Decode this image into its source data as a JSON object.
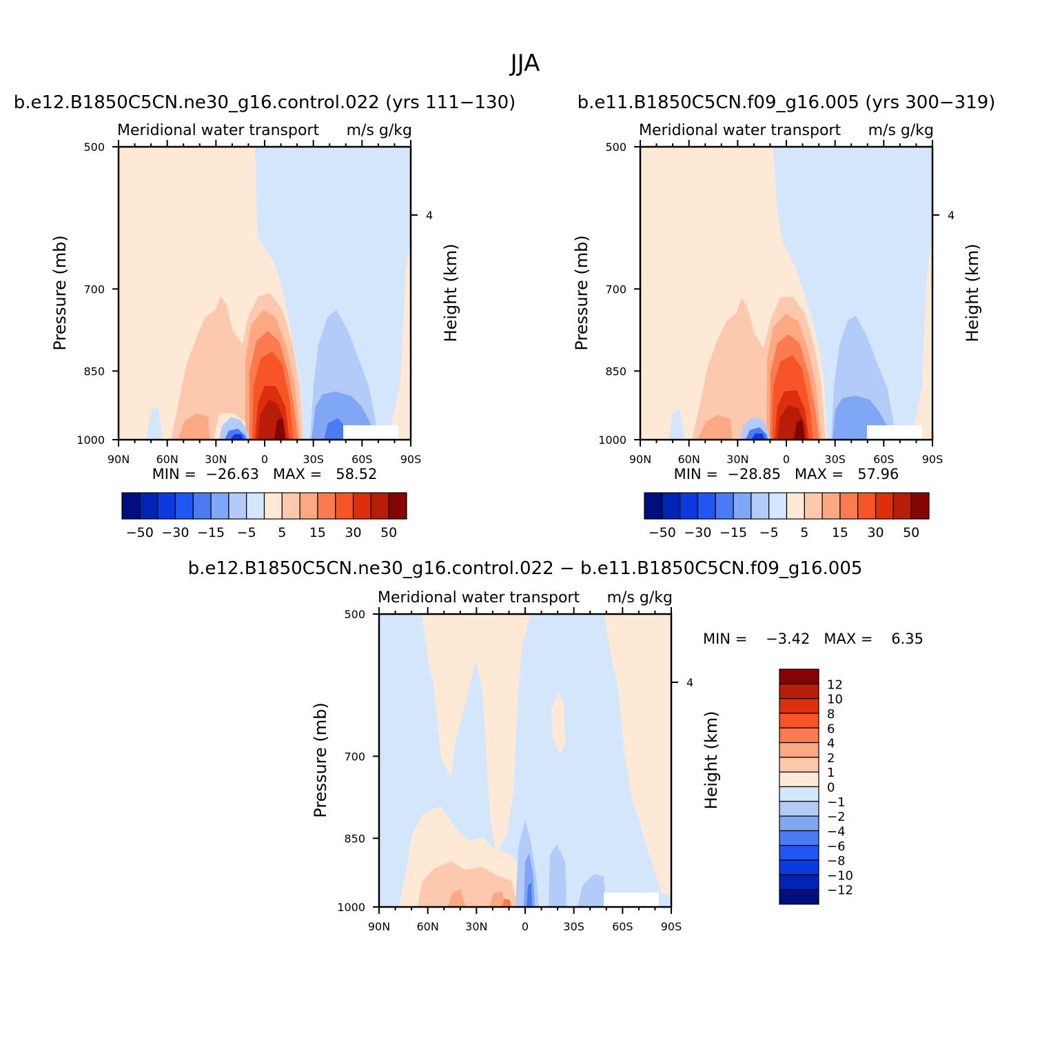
{
  "page_title": "JJA",
  "colors": {
    "neg": [
      "#000e7e",
      "#0224b4",
      "#0b3be0",
      "#2156f4",
      "#4a7bf2",
      "#80a6f6",
      "#b3cbf9",
      "#d4e6fc"
    ],
    "pos": [
      "#fee9d7",
      "#fcc9ae",
      "#fca882",
      "#fa7b4e",
      "#f75427",
      "#dc2f0e",
      "#b71d07",
      "#850404"
    ]
  },
  "chart_data": [
    {
      "type": "heatmap",
      "panel": "left",
      "title": "b.e12.B1850C5CN.ne30_g16.control.022 (yrs 111-130)",
      "subtitle_left": "Meridional water transport",
      "subtitle_right": "m/s g/kg",
      "ylabel": "Pressure (mb)",
      "ylabel_right": "Height (km)",
      "x_ticks": [
        "90N",
        "60N",
        "30N",
        "0",
        "30S",
        "60S",
        "90S"
      ],
      "y_ticks": [
        "500",
        "700",
        "850",
        "1000"
      ],
      "right_ticks": [
        "4"
      ],
      "ylim": [
        1000,
        500
      ],
      "stats": "MIN =  -26.63   MAX =   58.52",
      "min": -26.63,
      "max": 58.52,
      "colorbar_orientation": "horizontal",
      "colorbar_labels": [
        "-50",
        "-30",
        "-15",
        "-5",
        "5",
        "15",
        "30",
        "50"
      ],
      "field": [
        {
          "lat_range": [
            "90N",
            "6N"
          ],
          "pressure_range": [
            500,
            1000
          ],
          "value": "0 to 5"
        },
        {
          "lat_range": [
            "6N",
            "90S"
          ],
          "pressure_range": [
            500,
            1000
          ],
          "value": "-5 to 0"
        },
        {
          "lat_range": [
            "10N",
            "20S"
          ],
          "pressure_range": [
            840,
            1000
          ],
          "value": "30 to 58.52",
          "note": "maximum near surface just south of equator"
        },
        {
          "lat_range": [
            "20N",
            "5N"
          ],
          "pressure_range": [
            950,
            1000
          ],
          "value": "-26.63 to -15"
        },
        {
          "lat_range": [
            "35S",
            "50S"
          ],
          "pressure_range": [
            920,
            1000
          ],
          "value": "-15 to -5"
        }
      ]
    },
    {
      "type": "heatmap",
      "panel": "right",
      "title": "b.e11.B1850C5CN.f09_g16.005 (yrs 300-319)",
      "subtitle_left": "Meridional water transport",
      "subtitle_right": "m/s g/kg",
      "ylabel": "Pressure (mb)",
      "ylabel_right": "Height (km)",
      "x_ticks": [
        "90N",
        "60N",
        "30N",
        "0",
        "30S",
        "60S",
        "90S"
      ],
      "y_ticks": [
        "500",
        "700",
        "850",
        "1000"
      ],
      "right_ticks": [
        "4"
      ],
      "ylim": [
        1000,
        500
      ],
      "stats": "MIN =  -28.85   MAX =   57.96",
      "min": -28.85,
      "max": 57.96,
      "colorbar_orientation": "horizontal",
      "colorbar_labels": [
        "-50",
        "-30",
        "-15",
        "-5",
        "5",
        "15",
        "30",
        "50"
      ],
      "field": [
        {
          "lat_range": [
            "90N",
            "3S"
          ],
          "pressure_range": [
            500,
            1000
          ],
          "value": "0 to 5"
        },
        {
          "lat_range": [
            "3S",
            "90S"
          ],
          "pressure_range": [
            500,
            1000
          ],
          "value": "-5 to 0"
        },
        {
          "lat_range": [
            "10N",
            "20S"
          ],
          "pressure_range": [
            840,
            1000
          ],
          "value": "30 to 57.96"
        },
        {
          "lat_range": [
            "20N",
            "5N"
          ],
          "pressure_range": [
            950,
            1000
          ],
          "value": "-28.85 to -15"
        },
        {
          "lat_range": [
            "30S",
            "50S"
          ],
          "pressure_range": [
            920,
            1000
          ],
          "value": "-15 to -5"
        }
      ]
    },
    {
      "type": "heatmap",
      "panel": "difference",
      "title": "b.e12.B1850C5CN.ne30_g16.control.022 - b.e11.B1850C5CN.f09_g16.005",
      "subtitle_left": "Meridional water transport",
      "subtitle_right": "m/s g/kg",
      "ylabel": "Pressure (mb)",
      "ylabel_right": "Height (km)",
      "x_ticks": [
        "90N",
        "60N",
        "30N",
        "0",
        "30S",
        "60S",
        "90S"
      ],
      "y_ticks": [
        "500",
        "700",
        "850",
        "1000"
      ],
      "right_ticks": [
        "4"
      ],
      "ylim": [
        1000,
        500
      ],
      "stats": "MIN =    -3.42   MAX =    6.35",
      "min": -3.42,
      "max": 6.35,
      "colorbar_orientation": "vertical",
      "colorbar_labels": [
        "12",
        "10",
        "8",
        "6",
        "4",
        "2",
        "1",
        "0",
        "-1",
        "-2",
        "-4",
        "-6",
        "-8",
        "-10",
        "-12"
      ],
      "field": [
        {
          "lat_range": [
            "90N",
            "90S"
          ],
          "pressure_range": [
            500,
            1000
          ],
          "value": "-1 to 0"
        },
        {
          "lat_range": [
            "65N",
            "30N"
          ],
          "pressure_range": [
            500,
            1000
          ],
          "value": "0 to 1"
        },
        {
          "lat_range": [
            "50S",
            "85S"
          ],
          "pressure_range": [
            500,
            1000
          ],
          "value": "0 to 1"
        },
        {
          "lat_range": [
            "30N",
            "5N"
          ],
          "pressure_range": [
            940,
            1000
          ],
          "value": "1 to 6.35"
        },
        {
          "lat_range": [
            "2N",
            "5S"
          ],
          "pressure_range": [
            920,
            1000
          ],
          "value": "-3.42 to -1"
        }
      ]
    }
  ]
}
